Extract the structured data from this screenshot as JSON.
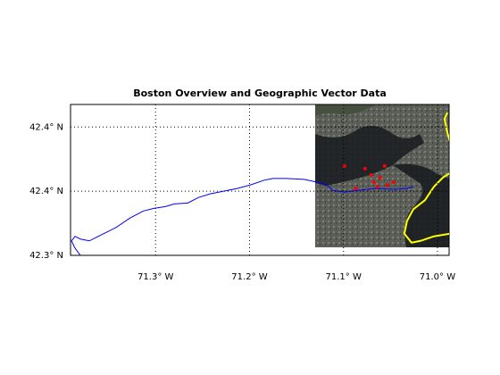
{
  "chart_data": {
    "type": "map",
    "title": "Boston Overview and Geographic Vector Data",
    "xlim": [
      -71.3905,
      -70.9876
    ],
    "ylim": [
      42.3,
      42.4176
    ],
    "xticks": [
      {
        "value": -71.3,
        "label": "71.3° W"
      },
      {
        "value": -71.2,
        "label": "71.2° W"
      },
      {
        "value": -71.1,
        "label": "71.1° W"
      },
      {
        "value": -71.0,
        "label": "71.0° W"
      }
    ],
    "yticks": [
      {
        "value": 42.3,
        "label": "42.3° N"
      },
      {
        "value": 42.35,
        "label": "42.4° N"
      },
      {
        "value": 42.4,
        "label": "42.4° N"
      }
    ],
    "grid": true,
    "series": [
      {
        "type": "line",
        "color": "#0000ff",
        "x": [
          -71.38,
          -71.3857,
          -71.3895,
          -71.3857,
          -71.38,
          -71.3705,
          -71.361,
          -71.3514,
          -71.3419,
          -71.3276,
          -71.3133,
          -71.3019,
          -71.2895,
          -71.28,
          -71.2657,
          -71.2543,
          -71.2419,
          -71.2276,
          -71.2133,
          -71.199,
          -71.1848,
          -71.1752,
          -71.161,
          -71.1419,
          -71.1276,
          -71.1181,
          -71.1114,
          -71.099,
          -71.0848,
          -71.0657,
          -71.0467,
          -71.0324,
          -71.0257
        ],
        "y": [
          42.3,
          42.3056,
          42.3113,
          42.3148,
          42.3127,
          42.3113,
          42.3148,
          42.3183,
          42.3218,
          42.3289,
          42.3345,
          42.3366,
          42.338,
          42.3401,
          42.3408,
          42.3451,
          42.3479,
          42.35,
          42.3521,
          42.3549,
          42.3585,
          42.3599,
          42.3599,
          42.3592,
          42.357,
          42.3549,
          42.3507,
          42.3493,
          42.3507,
          42.3521,
          42.3514,
          42.3521,
          42.3535
        ]
      },
      {
        "type": "line",
        "color": "#ffff00",
        "x": [
          -70.9895,
          -70.9924,
          -70.9895,
          -70.9867,
          -70.9867,
          -70.9943,
          -71.0038,
          -71.0133,
          -71.0257,
          -71.0324,
          -71.0352,
          -71.0276,
          -71.0181,
          -71.0038,
          -70.9867
        ],
        "y": [
          42.4113,
          42.4063,
          42.3958,
          42.3887,
          42.3641,
          42.3606,
          42.3535,
          42.343,
          42.3359,
          42.3268,
          42.3169,
          42.3099,
          42.3113,
          42.3148,
          42.3169
        ]
      },
      {
        "type": "points",
        "color": "#ff0000",
        "x": [
          -71.099,
          -71.0771,
          -71.0676,
          -71.061,
          -71.0562,
          -71.0533,
          -71.0467,
          -71.0867,
          -71.0705,
          -71.0638
        ],
        "y": [
          42.3697,
          42.3676,
          42.357,
          42.3606,
          42.3697,
          42.3549,
          42.357,
          42.3521,
          42.3627,
          42.3535
        ]
      }
    ]
  }
}
